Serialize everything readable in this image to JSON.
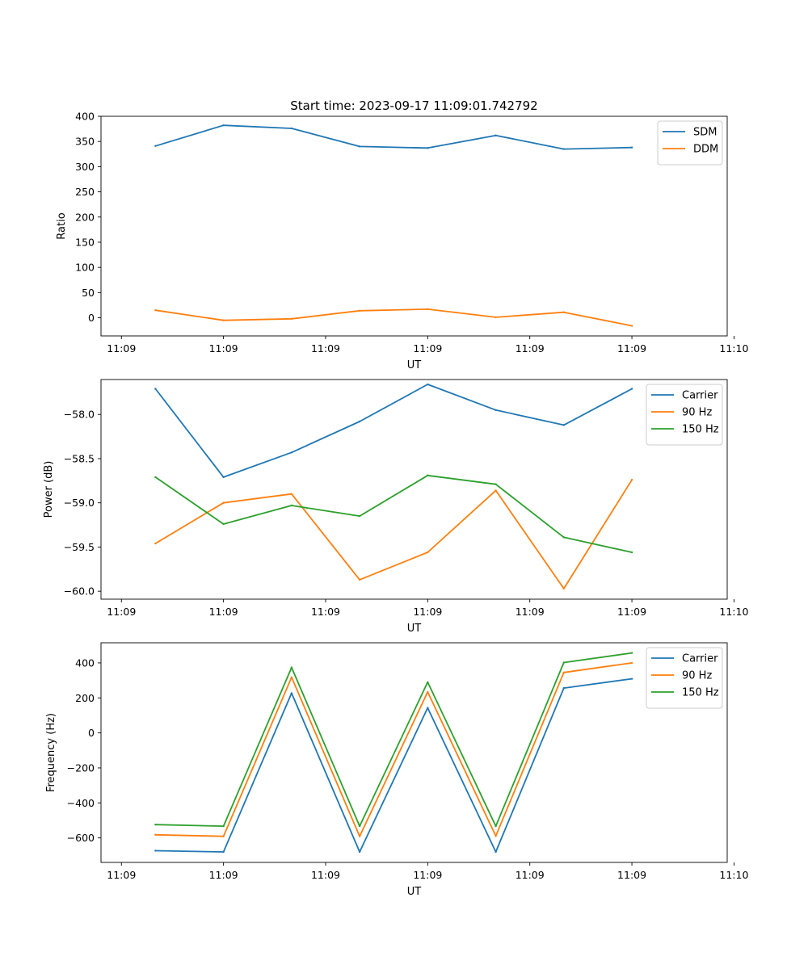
{
  "figure": {
    "title": "Start time: 2023-09-17 11:09:01.742792"
  },
  "colors": {
    "blue": "#1f77b4",
    "orange": "#ff7f0e",
    "green": "#2ca02c"
  },
  "chart_data": [
    {
      "type": "line",
      "title": "Start time: 2023-09-17 11:09:01.742792",
      "xlabel": "UT",
      "ylabel": "Ratio",
      "x": [
        1,
        2,
        3,
        4,
        5,
        6,
        7,
        8
      ],
      "xlim": [
        0.2,
        9.4
      ],
      "x_ticks": [
        0.5,
        2,
        3.5,
        5,
        6.5,
        8,
        9.5
      ],
      "x_tick_labels": [
        "11:09",
        "11:09",
        "11:09",
        "11:09",
        "11:09",
        "11:09",
        "11:10"
      ],
      "ylim": [
        -36,
        400
      ],
      "y_ticks": [
        0,
        50,
        100,
        150,
        200,
        250,
        300,
        350,
        400
      ],
      "y_tick_labels": [
        "0",
        "50",
        "100",
        "150",
        "200",
        "250",
        "300",
        "350",
        "400"
      ],
      "legend": "top-right",
      "series": [
        {
          "name": "SDM",
          "color": "#1f77b4",
          "values": [
            341,
            382,
            376,
            340,
            337,
            362,
            335,
            338
          ]
        },
        {
          "name": "DDM",
          "color": "#ff7f0e",
          "values": [
            15,
            -5,
            -2,
            14,
            17,
            1,
            11,
            -16
          ]
        }
      ]
    },
    {
      "type": "line",
      "title": "",
      "xlabel": "UT",
      "ylabel": "Power (dB)",
      "x": [
        1,
        2,
        3,
        4,
        5,
        6,
        7,
        8
      ],
      "xlim": [
        0.2,
        9.4
      ],
      "x_ticks": [
        0.5,
        2,
        3.5,
        5,
        6.5,
        8,
        9.5
      ],
      "x_tick_labels": [
        "11:09",
        "11:09",
        "11:09",
        "11:09",
        "11:09",
        "11:09",
        "11:10"
      ],
      "ylim": [
        -60.09,
        -57.605
      ],
      "y_ticks": [
        -60.0,
        -59.5,
        -59.0,
        -58.5,
        -58.0
      ],
      "y_tick_labels": [
        "−60.0",
        "−59.5",
        "−59.0",
        "−58.5",
        "−58.0"
      ],
      "legend": "top-right",
      "series": [
        {
          "name": "Carrier",
          "color": "#1f77b4",
          "values": [
            -57.71,
            -58.71,
            -58.43,
            -58.08,
            -57.66,
            -57.95,
            -58.12,
            -57.71
          ]
        },
        {
          "name": "90 Hz",
          "color": "#ff7f0e",
          "values": [
            -59.46,
            -59.0,
            -58.9,
            -59.87,
            -59.56,
            -58.86,
            -59.97,
            -58.74
          ]
        },
        {
          "name": "150 Hz",
          "color": "#2ca02c",
          "values": [
            -58.71,
            -59.24,
            -59.03,
            -59.15,
            -58.69,
            -58.79,
            -59.39,
            -59.56
          ]
        }
      ]
    },
    {
      "type": "line",
      "title": "",
      "xlabel": "UT",
      "ylabel": "Frequency (Hz)",
      "x": [
        1,
        2,
        3,
        4,
        5,
        6,
        7,
        8
      ],
      "xlim": [
        0.2,
        9.4
      ],
      "x_ticks": [
        0.5,
        2,
        3.5,
        5,
        6.5,
        8,
        9.5
      ],
      "x_tick_labels": [
        "11:09",
        "11:09",
        "11:09",
        "11:09",
        "11:09",
        "11:09",
        "11:10"
      ],
      "ylim": [
        -740,
        515
      ],
      "y_ticks": [
        -600,
        -400,
        -200,
        0,
        200,
        400
      ],
      "y_tick_labels": [
        "−600",
        "−400",
        "−200",
        "0",
        "200",
        "400"
      ],
      "legend": "top-right",
      "series": [
        {
          "name": "Carrier",
          "color": "#1f77b4",
          "values": [
            -673,
            -680,
            227,
            -680,
            143,
            -680,
            256,
            309
          ]
        },
        {
          "name": "90 Hz",
          "color": "#ff7f0e",
          "values": [
            -582,
            -591,
            318,
            -591,
            234,
            -589,
            345,
            400
          ]
        },
        {
          "name": "150 Hz",
          "color": "#2ca02c",
          "values": [
            -524,
            -533,
            374,
            -533,
            290,
            -533,
            402,
            457
          ]
        }
      ]
    }
  ]
}
